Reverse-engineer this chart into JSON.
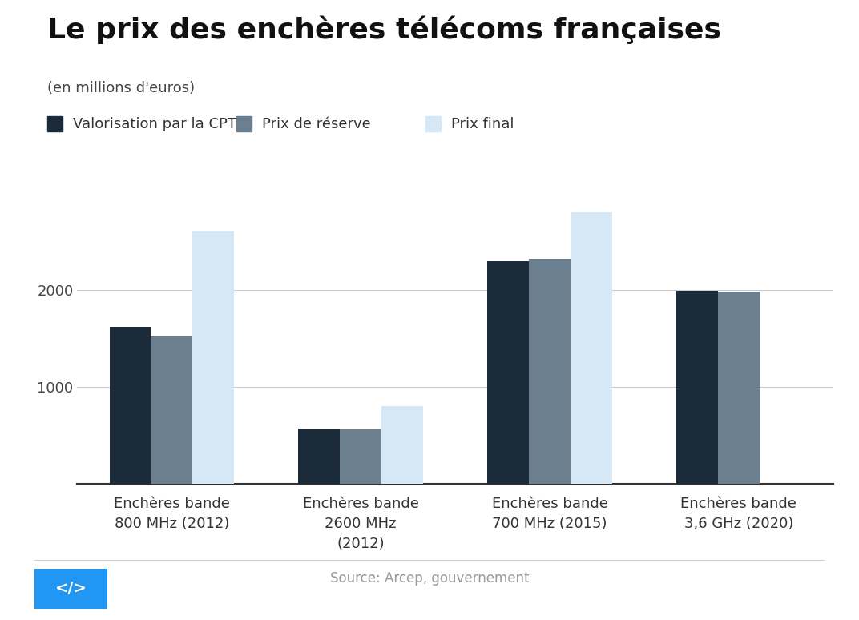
{
  "title": "Le prix des enchères télécoms françaises",
  "subtitle": "(en millions d'euros)",
  "source": "Source: Arcep, gouvernement",
  "categories": [
    "Enchères bande\n800 MHz (2012)",
    "Enchères bande\n2600 MHz\n(2012)",
    "Enchères bande\n700 MHz (2015)",
    "Enchères bande\n3,6 GHz (2020)"
  ],
  "series": {
    "Valorisation par la CPT": [
      1620,
      570,
      2300,
      1990
    ],
    "Prix de réserve": [
      1520,
      560,
      2320,
      1980
    ],
    "Prix final": [
      2600,
      800,
      2800,
      null
    ]
  },
  "colors": {
    "Valorisation par la CPT": "#1c2b39",
    "Prix de réserve": "#6b7f8e",
    "Prix final": "#d6e8f5"
  },
  "ylim": [
    0,
    3200
  ],
  "yticks": [
    0,
    1000,
    2000
  ],
  "bar_width": 0.22,
  "background_color": "#ffffff",
  "title_fontsize": 26,
  "subtitle_fontsize": 13,
  "legend_fontsize": 13,
  "tick_fontsize": 13,
  "source_fontsize": 12
}
